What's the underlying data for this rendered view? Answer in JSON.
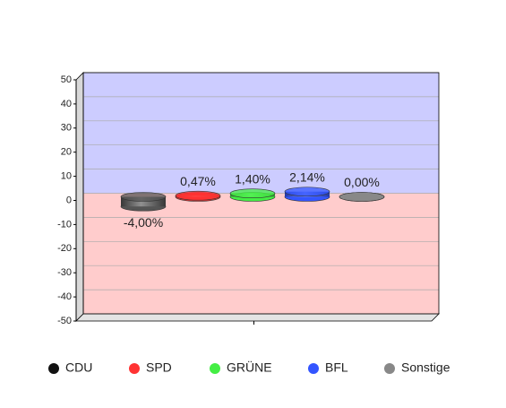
{
  "chart_data": {
    "type": "bar3d",
    "categories": [
      null
    ],
    "series": [
      {
        "name": "CDU",
        "color": "#555555",
        "values": [
          -4.0
        ],
        "value_labels": [
          "-4,00%"
        ]
      },
      {
        "name": "SPD",
        "color": "#ff3333",
        "values": [
          0.47
        ],
        "value_labels": [
          "0,47%"
        ]
      },
      {
        "name": "GRÜNE",
        "color": "#44ee44",
        "values": [
          1.4
        ],
        "value_labels": [
          "1,40%"
        ]
      },
      {
        "name": "BFL",
        "color": "#3355ff",
        "values": [
          2.14
        ],
        "value_labels": [
          "2,14%"
        ]
      },
      {
        "name": "Sonstige",
        "color": "#888888",
        "values": [
          0.0
        ],
        "value_labels": [
          "0,00%"
        ]
      }
    ],
    "ylim": [
      -50,
      50
    ],
    "yticks": [
      -50,
      -40,
      -30,
      -20,
      -10,
      0,
      10,
      20,
      30,
      40,
      50
    ],
    "grid": true,
    "legend": "bottom"
  }
}
